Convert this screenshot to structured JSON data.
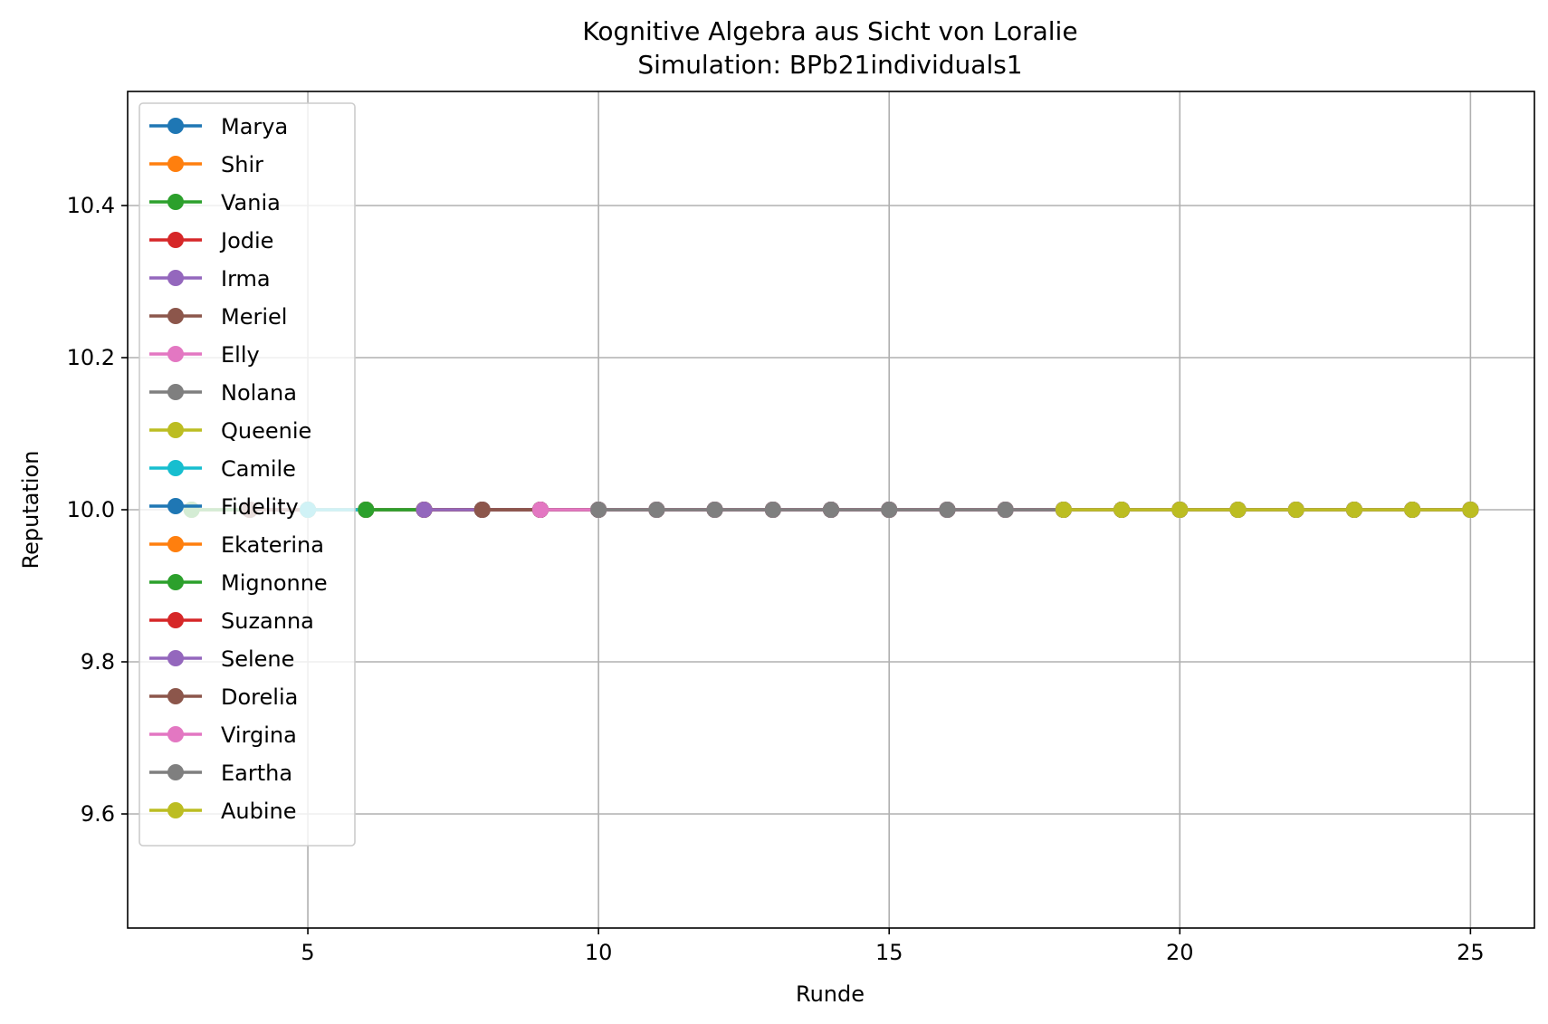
{
  "chart_data": {
    "type": "line",
    "title": "Kognitive Algebra aus Sicht von Loralie",
    "subtitle": "Simulation: BPb21individuals1",
    "xlabel": "Runde",
    "ylabel": "Reputation",
    "xlim": [
      1.9,
      26.1
    ],
    "ylim": [
      9.45,
      10.55
    ],
    "xticks": [
      5,
      10,
      15,
      20,
      25
    ],
    "xtick_labels": [
      "5",
      "10",
      "15",
      "20",
      "25"
    ],
    "yticks": [
      9.6,
      9.8,
      10.0,
      10.2,
      10.4
    ],
    "ytick_labels": [
      "9.6",
      "9.8",
      "10.0",
      "10.2",
      "10.4"
    ],
    "grid": true,
    "legend_position": "upper-left",
    "series": [
      {
        "name": "Marya",
        "color": "#1f77b4",
        "x": [
          3,
          4,
          5,
          6,
          7,
          8,
          9,
          10,
          11,
          12,
          13,
          14,
          15,
          16,
          17,
          18,
          19,
          20,
          21,
          22,
          23,
          24,
          25
        ],
        "y": [
          10,
          10,
          10,
          10,
          10,
          10,
          10,
          10,
          10,
          10,
          10,
          10,
          10,
          10,
          10,
          10,
          10,
          10,
          10,
          10,
          10,
          10,
          10
        ]
      },
      {
        "name": "Shir",
        "color": "#ff7f0e",
        "x": [
          3,
          4,
          5,
          6,
          7,
          8,
          9,
          10,
          11,
          12,
          13,
          14,
          15,
          16,
          17,
          18,
          19,
          20,
          21,
          22,
          23,
          24,
          25
        ],
        "y": [
          10,
          10,
          10,
          10,
          10,
          10,
          10,
          10,
          10,
          10,
          10,
          10,
          10,
          10,
          10,
          10,
          10,
          10,
          10,
          10,
          10,
          10,
          10
        ]
      },
      {
        "name": "Vania",
        "color": "#2ca02c",
        "x": [
          3,
          4,
          5,
          6,
          7,
          8,
          9,
          10,
          11,
          12,
          13,
          14,
          15,
          16,
          17,
          18,
          19,
          20,
          21,
          22,
          23,
          24,
          25
        ],
        "y": [
          10,
          10,
          10,
          10,
          10,
          10,
          10,
          10,
          10,
          10,
          10,
          10,
          10,
          10,
          10,
          10,
          10,
          10,
          10,
          10,
          10,
          10,
          10
        ]
      },
      {
        "name": "Jodie",
        "color": "#d62728",
        "x": [
          4,
          5,
          6,
          7,
          8,
          9,
          10,
          11,
          12,
          13,
          14,
          15,
          16,
          17,
          18,
          19,
          20,
          21,
          22,
          23,
          24,
          25
        ],
        "y": [
          10,
          10,
          10,
          10,
          10,
          10,
          10,
          10,
          10,
          10,
          10,
          10,
          10,
          10,
          10,
          10,
          10,
          10,
          10,
          10,
          10,
          10
        ]
      },
      {
        "name": "Irma",
        "color": "#9467bd",
        "x": [
          4,
          5,
          6,
          7,
          8,
          9,
          10,
          11,
          12,
          13,
          14,
          15,
          16,
          17,
          18,
          19,
          20,
          21,
          22,
          23,
          24,
          25
        ],
        "y": [
          10,
          10,
          10,
          10,
          10,
          10,
          10,
          10,
          10,
          10,
          10,
          10,
          10,
          10,
          10,
          10,
          10,
          10,
          10,
          10,
          10,
          10
        ]
      },
      {
        "name": "Meriel",
        "color": "#8c564b",
        "x": [
          4,
          5,
          6,
          7,
          8,
          9,
          10,
          11,
          12,
          13,
          14,
          15,
          16,
          17,
          18,
          19,
          20,
          21,
          22,
          23,
          24,
          25
        ],
        "y": [
          10,
          10,
          10,
          10,
          10,
          10,
          10,
          10,
          10,
          10,
          10,
          10,
          10,
          10,
          10,
          10,
          10,
          10,
          10,
          10,
          10,
          10
        ]
      },
      {
        "name": "Elly",
        "color": "#e377c2",
        "x": [
          5,
          6,
          7,
          8,
          9,
          10,
          11,
          12,
          13,
          14,
          15,
          16,
          17,
          18,
          19,
          20,
          21,
          22,
          23,
          24,
          25
        ],
        "y": [
          10,
          10,
          10,
          10,
          10,
          10,
          10,
          10,
          10,
          10,
          10,
          10,
          10,
          10,
          10,
          10,
          10,
          10,
          10,
          10,
          10
        ]
      },
      {
        "name": "Nolana",
        "color": "#7f7f7f",
        "x": [
          5,
          6,
          7,
          8,
          9,
          10,
          11,
          12,
          13,
          14,
          15,
          16,
          17,
          18,
          19,
          20,
          21,
          22,
          23,
          24,
          25
        ],
        "y": [
          10,
          10,
          10,
          10,
          10,
          10,
          10,
          10,
          10,
          10,
          10,
          10,
          10,
          10,
          10,
          10,
          10,
          10,
          10,
          10,
          10
        ]
      },
      {
        "name": "Queenie",
        "color": "#bcbd22",
        "x": [
          5,
          6,
          7,
          8,
          9,
          10,
          11,
          12,
          13,
          14,
          15,
          16,
          17,
          18,
          19,
          20,
          21,
          22,
          23,
          24,
          25
        ],
        "y": [
          10,
          10,
          10,
          10,
          10,
          10,
          10,
          10,
          10,
          10,
          10,
          10,
          10,
          10,
          10,
          10,
          10,
          10,
          10,
          10,
          10
        ]
      },
      {
        "name": "Camile",
        "color": "#17becf",
        "x": [
          5,
          6,
          7,
          8,
          9,
          10,
          11,
          12,
          13,
          14,
          15,
          16,
          17,
          18,
          19,
          20,
          21,
          22,
          23,
          24,
          25
        ],
        "y": [
          10,
          10,
          10,
          10,
          10,
          10,
          10,
          10,
          10,
          10,
          10,
          10,
          10,
          10,
          10,
          10,
          10,
          10,
          10,
          10,
          10
        ]
      },
      {
        "name": "Fidelity",
        "color": "#1f77b4",
        "x": [
          6,
          7,
          8,
          9,
          10,
          11,
          12,
          13,
          14,
          15,
          16,
          17,
          18,
          19,
          20,
          21,
          22,
          23,
          24,
          25
        ],
        "y": [
          10,
          10,
          10,
          10,
          10,
          10,
          10,
          10,
          10,
          10,
          10,
          10,
          10,
          10,
          10,
          10,
          10,
          10,
          10,
          10
        ]
      },
      {
        "name": "Ekaterina",
        "color": "#ff7f0e",
        "x": [
          6,
          7,
          8,
          9,
          10,
          11,
          12,
          13,
          14,
          15,
          16,
          17,
          18,
          19,
          20,
          21,
          22,
          23,
          24,
          25
        ],
        "y": [
          10,
          10,
          10,
          10,
          10,
          10,
          10,
          10,
          10,
          10,
          10,
          10,
          10,
          10,
          10,
          10,
          10,
          10,
          10,
          10
        ]
      },
      {
        "name": "Mignonne",
        "color": "#2ca02c",
        "x": [
          6,
          7,
          8,
          9,
          10,
          11,
          12,
          13,
          14,
          15,
          16,
          17,
          18,
          19,
          20,
          21,
          22,
          23,
          24,
          25
        ],
        "y": [
          10,
          10,
          10,
          10,
          10,
          10,
          10,
          10,
          10,
          10,
          10,
          10,
          10,
          10,
          10,
          10,
          10,
          10,
          10,
          10
        ]
      },
      {
        "name": "Suzanna",
        "color": "#d62728",
        "x": [
          7,
          8,
          9,
          10,
          11,
          12,
          13,
          14,
          15,
          16,
          17,
          18,
          19,
          20,
          21,
          22,
          23,
          24,
          25
        ],
        "y": [
          10,
          10,
          10,
          10,
          10,
          10,
          10,
          10,
          10,
          10,
          10,
          10,
          10,
          10,
          10,
          10,
          10,
          10,
          10
        ]
      },
      {
        "name": "Selene",
        "color": "#9467bd",
        "x": [
          7,
          8,
          9,
          10,
          11,
          12,
          13,
          14,
          15,
          16,
          17,
          18,
          19,
          20,
          21,
          22,
          23,
          24,
          25
        ],
        "y": [
          10,
          10,
          10,
          10,
          10,
          10,
          10,
          10,
          10,
          10,
          10,
          10,
          10,
          10,
          10,
          10,
          10,
          10,
          10
        ]
      },
      {
        "name": "Dorelia",
        "color": "#8c564b",
        "x": [
          8,
          9,
          10,
          11,
          12,
          13,
          14,
          15,
          16,
          17,
          18,
          19,
          20,
          21,
          22,
          23,
          24,
          25
        ],
        "y": [
          10,
          10,
          10,
          10,
          10,
          10,
          10,
          10,
          10,
          10,
          10,
          10,
          10,
          10,
          10,
          10,
          10,
          10
        ]
      },
      {
        "name": "Virgina",
        "color": "#e377c2",
        "x": [
          9,
          10,
          11,
          12,
          13,
          14,
          15,
          16,
          17,
          18,
          19,
          20,
          21,
          22,
          23,
          24,
          25
        ],
        "y": [
          10,
          10,
          10,
          10,
          10,
          10,
          10,
          10,
          10,
          10,
          10,
          10,
          10,
          10,
          10,
          10,
          10
        ]
      },
      {
        "name": "Eartha",
        "color": "#7f7f7f",
        "x": [
          10,
          11,
          12,
          13,
          14,
          15,
          16,
          17,
          18,
          19,
          20,
          21,
          22,
          23,
          24,
          25
        ],
        "y": [
          10,
          10,
          10,
          10,
          10,
          10,
          10,
          10,
          10,
          10,
          10,
          10,
          10,
          10,
          10,
          10
        ]
      },
      {
        "name": "Aubine",
        "color": "#bcbd22",
        "x": [
          18,
          19,
          20,
          21,
          22,
          23,
          24,
          25
        ],
        "y": [
          10,
          10,
          10,
          10,
          10,
          10,
          10,
          10
        ]
      }
    ]
  }
}
